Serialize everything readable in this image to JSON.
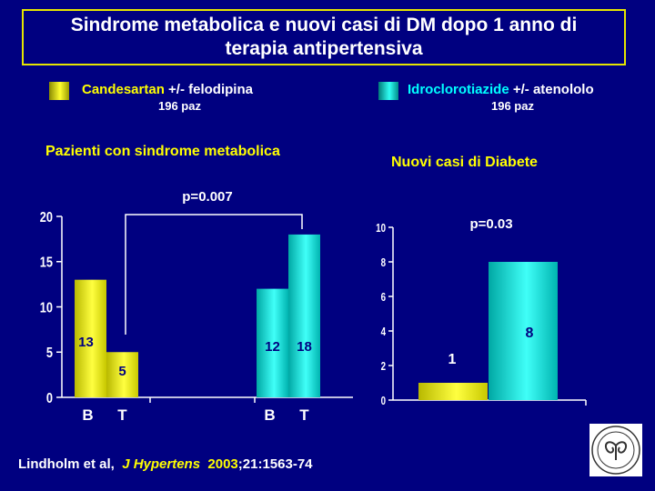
{
  "title": "Sindrome metabolica e nuovi casi di DM  dopo 1 anno di\nterapia antipertensiva",
  "legend": [
    {
      "drug": "Candesartan",
      "rest": " +/- felodipina",
      "n": "196 paz",
      "color": "#e6e600"
    },
    {
      "drug": "Idroclorotiazide",
      "rest": " +/- atenololo",
      "n": "196 paz",
      "color": "#00e0d8"
    }
  ],
  "colors": {
    "yellow": "#e6e600",
    "cyan": "#00d8d0",
    "background": "#000080",
    "title_border": "#e6e600"
  },
  "chart_data": [
    {
      "type": "bar",
      "title": "Pazienti con sindrome metabolica",
      "categories": [
        "B",
        "T",
        "B",
        "T"
      ],
      "series": [
        {
          "name": "Candesartan +/- felodipina",
          "values": [
            13,
            5,
            null,
            null
          ]
        },
        {
          "name": "Idroclorotiazide +/- atenololo",
          "values": [
            null,
            null,
            12,
            18
          ]
        }
      ],
      "data_labels": [
        "13",
        "5",
        "12",
        "18"
      ],
      "ylim": [
        0,
        20
      ],
      "yticks": [
        "0",
        "5",
        "10",
        "15",
        "20"
      ],
      "annotation": "p=0.007"
    },
    {
      "type": "bar",
      "title": "Nuovi casi di Diabete",
      "categories": [
        "",
        ""
      ],
      "series": [
        {
          "name": "Candesartan +/- felodipina",
          "values": [
            1,
            null
          ]
        },
        {
          "name": "Idroclorotiazide +/- atenololo",
          "values": [
            null,
            8
          ]
        }
      ],
      "data_labels": [
        "1",
        "8"
      ],
      "ylim": [
        0,
        10
      ],
      "yticks": [
        "0",
        "2",
        "4",
        "6",
        "8",
        "10"
      ],
      "annotation": "p=0.03"
    }
  ],
  "citation": {
    "authors": "Lindholm et al,",
    "journal": "J Hypertens",
    "year": "2003",
    "rest": ";21:1563-74"
  },
  "logo_icon": "university-seal-icon"
}
